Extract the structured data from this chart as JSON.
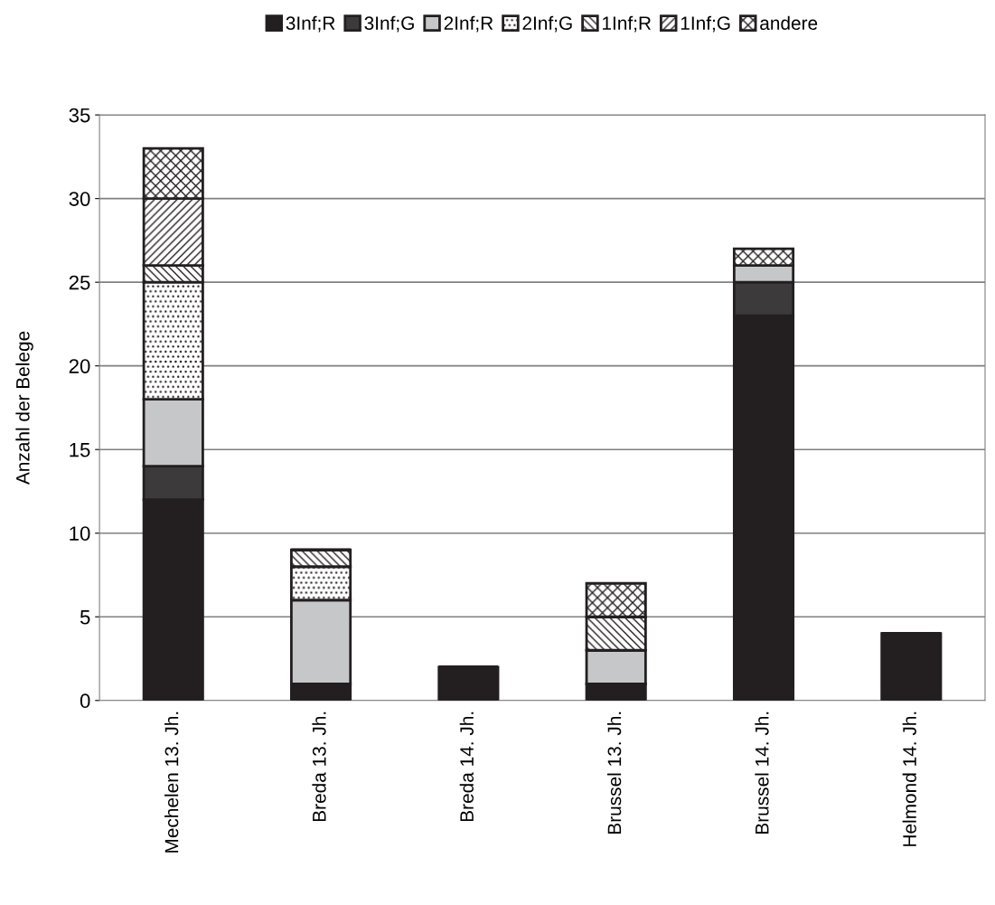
{
  "chart_data": {
    "type": "bar",
    "stacked": true,
    "ylabel": "Anzahl der Belege",
    "categories": [
      "Mechelen 13. Jh.",
      "Breda 13. Jh.",
      "Breda 14. Jh.",
      "Brussel 13. Jh.",
      "Brussel 14. Jh.",
      "Helmond 14. Jh."
    ],
    "series": [
      {
        "name": "3Inf;R",
        "color": "#231f20",
        "values": [
          12,
          1,
          2,
          1,
          23,
          4
        ]
      },
      {
        "name": "3Inf;G",
        "color": "#3c3a3b",
        "values": [
          2,
          0,
          0,
          0,
          2,
          0
        ]
      },
      {
        "name": "2Inf;R",
        "color": "#c6c7c9",
        "values": [
          4,
          5,
          0,
          2,
          1,
          0
        ]
      },
      {
        "name": "2Inf;G",
        "color": "#231f20",
        "values": [
          7,
          2,
          0,
          0,
          0,
          0
        ]
      },
      {
        "name": "1Inf;R",
        "color": "#231f20",
        "values": [
          1,
          1,
          0,
          2,
          0,
          0
        ]
      },
      {
        "name": "1Inf;G",
        "color": "#231f20",
        "values": [
          4,
          0,
          0,
          0,
          0,
          0
        ]
      },
      {
        "name": "andere",
        "color": "#231f20",
        "values": [
          3,
          0,
          0,
          2,
          1,
          0
        ]
      }
    ],
    "ylim": [
      0,
      35
    ],
    "yticks": [
      0,
      5,
      10,
      15,
      20,
      25,
      30,
      35
    ],
    "grid": "y",
    "legend": "top"
  }
}
